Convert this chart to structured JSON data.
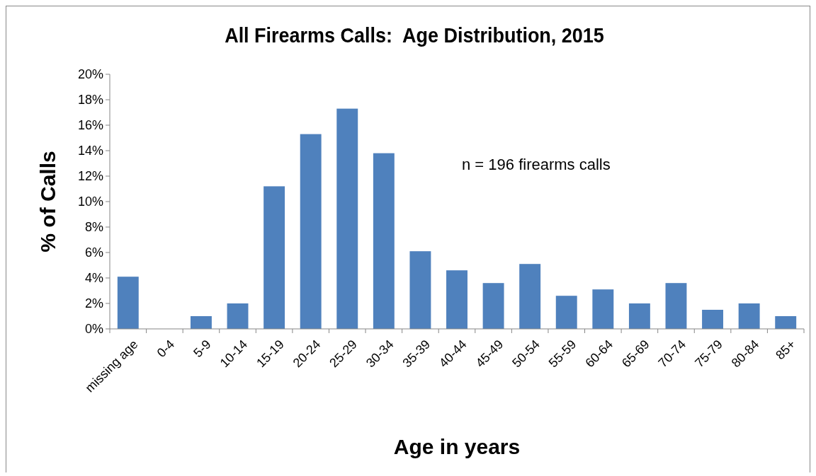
{
  "chart_data": {
    "type": "bar",
    "title": "All Firearms Calls:  Age Distribution, 2015",
    "xlabel": "Age in years",
    "ylabel": "% of Calls",
    "categories": [
      "missing age",
      "0-4",
      "5-9",
      "10-14",
      "15-19",
      "20-24",
      "25-29",
      "30-34",
      "35-39",
      "40-44",
      "45-49",
      "50-54",
      "55-59",
      "60-64",
      "65-69",
      "70-74",
      "75-79",
      "80-84",
      "85+"
    ],
    "values": [
      4.1,
      0,
      1.0,
      2.0,
      11.2,
      15.3,
      17.3,
      13.8,
      6.1,
      4.6,
      3.6,
      5.1,
      2.6,
      3.1,
      2.0,
      3.6,
      1.5,
      2.0,
      1.0
    ],
    "color": "#4f81bd",
    "ylim": [
      0,
      20
    ],
    "yticks": [
      {
        "value": 0,
        "label": "0%"
      },
      {
        "value": 2,
        "label": "2%"
      },
      {
        "value": 4,
        "label": "4%"
      },
      {
        "value": 6,
        "label": "6%"
      },
      {
        "value": 8,
        "label": "8%"
      },
      {
        "value": 10,
        "label": "10%"
      },
      {
        "value": 12,
        "label": "12%"
      },
      {
        "value": 14,
        "label": "14%"
      },
      {
        "value": 16,
        "label": "16%"
      },
      {
        "value": 18,
        "label": "18%"
      },
      {
        "value": 20,
        "label": "20%"
      }
    ],
    "annotations": [
      "n = 196 firearms calls"
    ],
    "grid": false
  }
}
